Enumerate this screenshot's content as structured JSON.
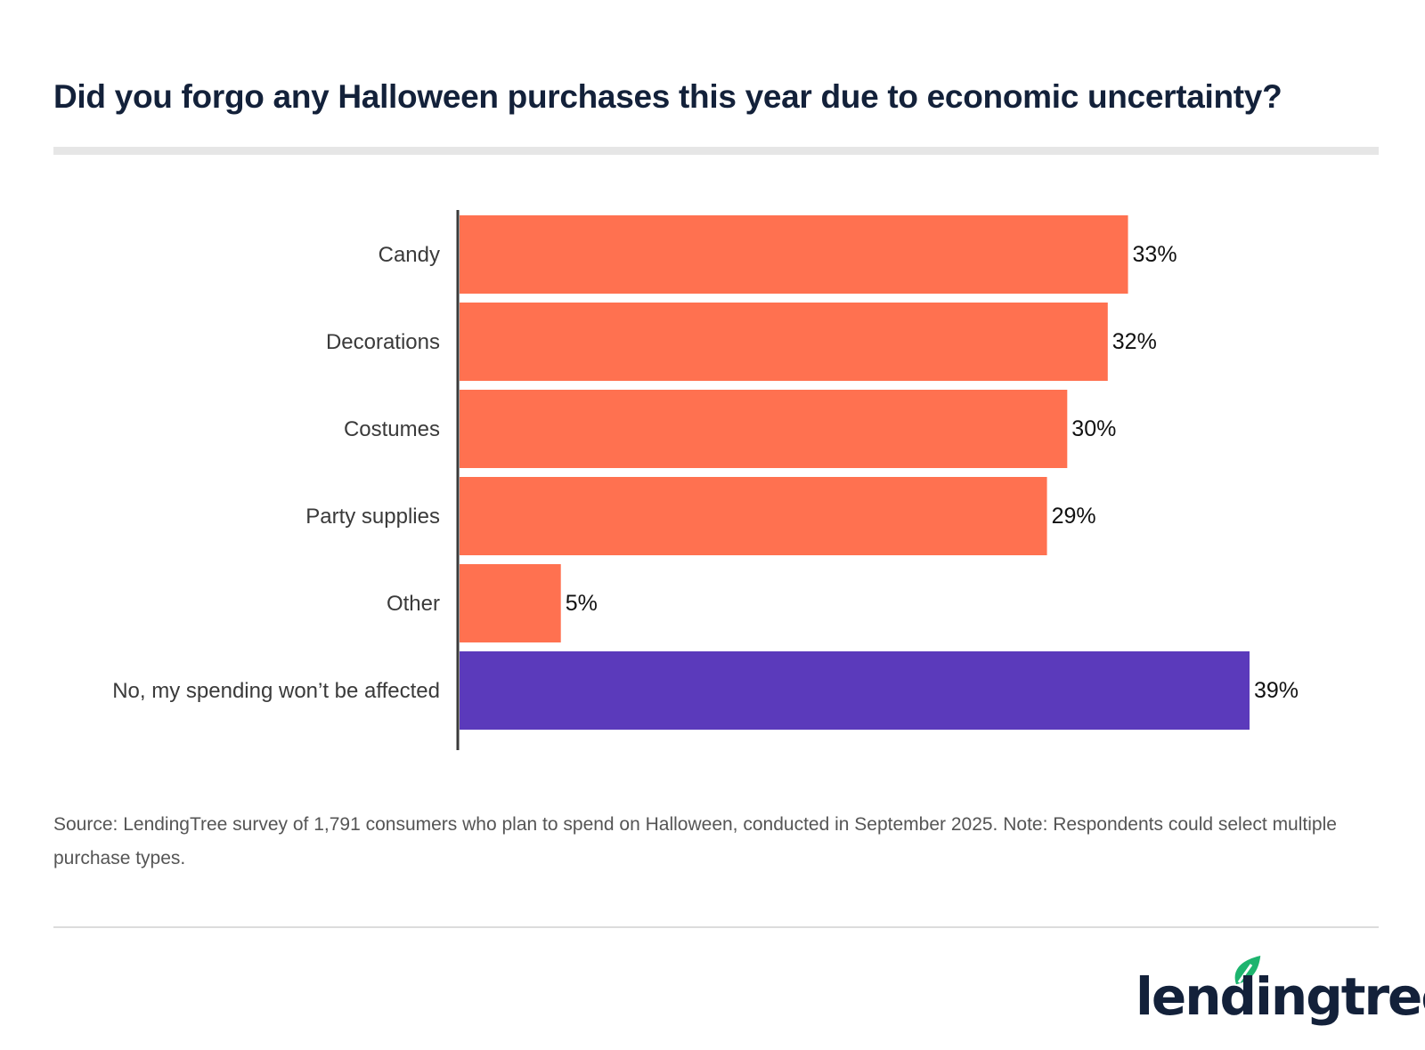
{
  "title": "Did you forgo any Halloween purchases this year due to economic uncertainty?",
  "chart_data": {
    "type": "bar",
    "orientation": "horizontal",
    "categories": [
      "Candy",
      "Decorations",
      "Costumes",
      "Party supplies",
      "Other",
      "No, my spending won’t be affected"
    ],
    "values": [
      33,
      32,
      30,
      29,
      5,
      39
    ],
    "value_labels": [
      "33%",
      "32%",
      "30%",
      "29%",
      "5%",
      "39%"
    ],
    "colors": [
      "#FF7150",
      "#FF7150",
      "#FF7150",
      "#FF7150",
      "#FF7150",
      "#5B3ABB"
    ],
    "xlim": [
      0,
      39
    ],
    "grid": false
  },
  "source": "Source: LendingTree survey of 1,791 consumers who plan to spend on Halloween, conducted in September 2025. Note: Respondents could select multiple purchase types.",
  "logo": {
    "text": "lendingtree",
    "leaf_color": "#1DB46E"
  }
}
